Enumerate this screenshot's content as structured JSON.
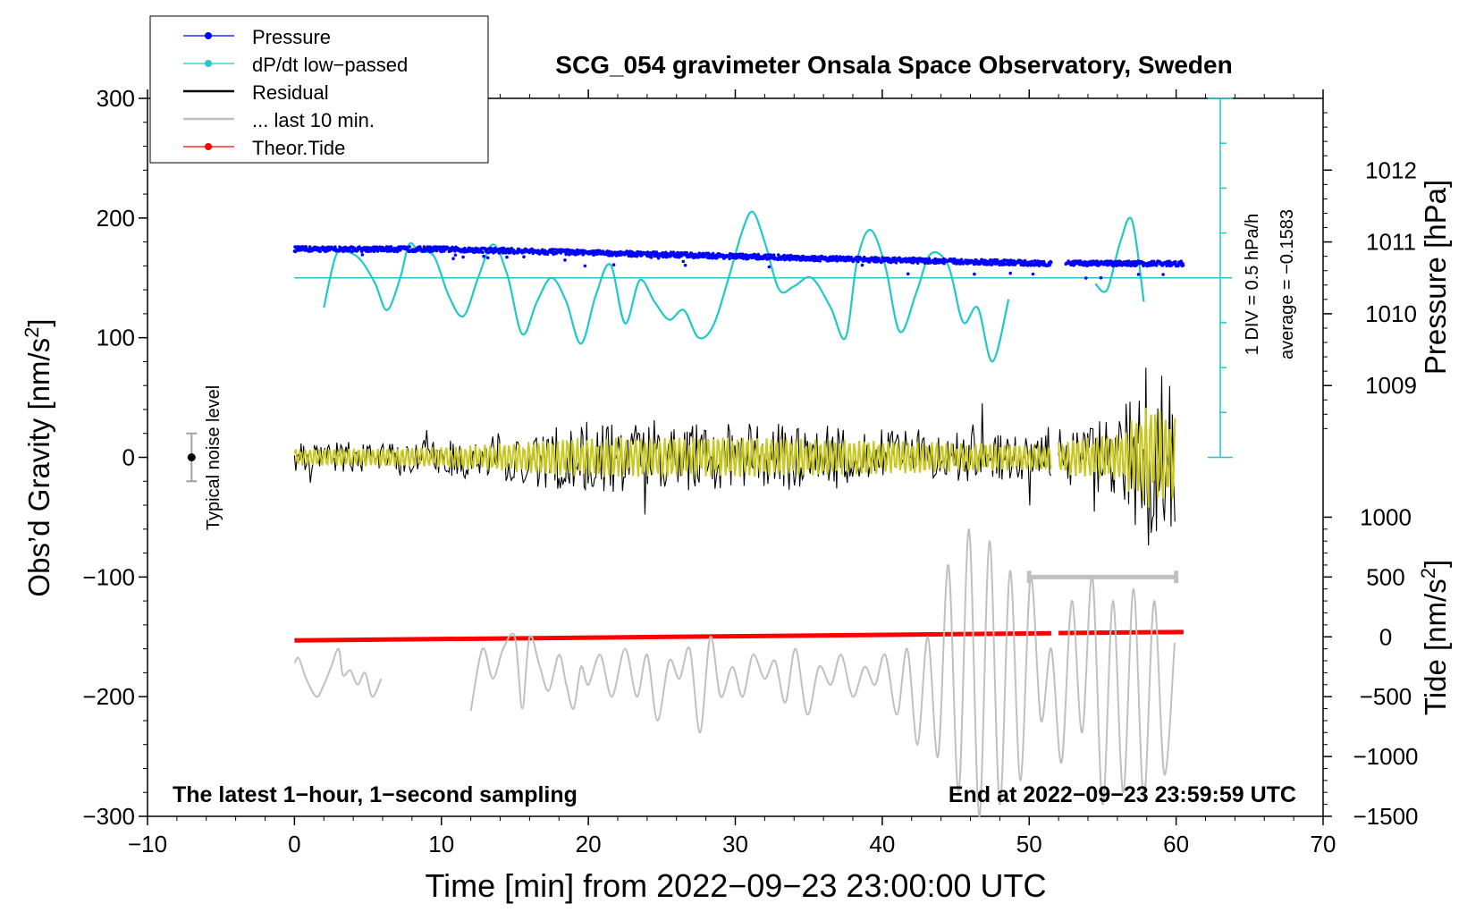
{
  "chart_data": {
    "type": "line",
    "title": "SCG_054 gravimeter Onsala Space Observatory, Sweden",
    "xlabel": "Time [min] from 2022−09−23 23:00:00 UTC",
    "ylabel_left_main": "Obs’d Gravity [nm/s",
    "ylabel_left_sup": "2",
    "ylabel_left_end": "]",
    "ylabel_right_pressure": "Pressure [hPa]",
    "ylabel_right_tide_main": "Tide [nm/s",
    "ylabel_right_tide_sup": "2",
    "ylabel_right_tide_end": "]",
    "xlim": [
      -10,
      70
    ],
    "ylim": [
      -300,
      300
    ],
    "x_ticks": [
      "−10",
      "0",
      "10",
      "20",
      "30",
      "40",
      "50",
      "60",
      "70"
    ],
    "x_tick_values": [
      -10,
      0,
      10,
      20,
      30,
      40,
      50,
      60,
      70
    ],
    "y_ticks": [
      "300",
      "200",
      "100",
      "0",
      "−100",
      "−200",
      "−300"
    ],
    "y_tick_values": [
      300,
      200,
      100,
      0,
      -100,
      -200,
      -300
    ],
    "pressure_ticks": [
      "1012",
      "1011",
      "1010",
      "1009"
    ],
    "pressure_tick_values": [
      1012,
      1011,
      1010,
      1009
    ],
    "pressure_axis": {
      "gravity_at_1012": 240,
      "gravity_per_hPa": 60
    },
    "tide_ticks": [
      "1000",
      "500",
      "0",
      "−500",
      "−1000",
      "−1500"
    ],
    "tide_tick_values": [
      1000,
      500,
      0,
      -500,
      -1000,
      -1500
    ],
    "tide_axis": {
      "gravity_at_0": -150,
      "gravity_per_500": 50
    },
    "legend_position": "top-left",
    "legend": [
      {
        "name": "Pressure",
        "color": "#0000ff",
        "marker": true
      },
      {
        "name": "dP/dt low−passed",
        "color": "#20c8c8",
        "marker": true
      },
      {
        "name": "Residual",
        "color": "#000000",
        "marker": false
      },
      {
        "name": "... last 10 min.",
        "color": "#c0c0c0",
        "marker": false
      },
      {
        "name": "Theor.Tide",
        "color": "#ff0000",
        "marker": true
      }
    ],
    "colors": {
      "pressure": "#0000ff",
      "dpdt": "#20c8c8",
      "residual": "#000000",
      "residual_filtered": "#c8c820",
      "last10": "#c0c0c0",
      "tide": "#ff0000"
    },
    "annotations": {
      "bottom_left": "The latest 1−hour, 1−second sampling",
      "bottom_right": "End at 2022−09−23 23:59:59 UTC",
      "scale_div": "1 DIV = 0.5 hPa/h",
      "scale_avg": "average = −0.1583",
      "noise": "Typical noise level"
    },
    "noise_bar": {
      "x": -7,
      "center": 0,
      "low": -20,
      "high": 20
    },
    "last10_span": {
      "x_start": 50,
      "x_end": 60,
      "y": -100
    },
    "dpdt_scale": {
      "x": 63,
      "bottom": 0,
      "top": 300,
      "divisions": 8,
      "baseline": 150
    },
    "series": [
      {
        "name": "Pressure",
        "unit": "hPa",
        "segments": [
          {
            "x": [
              0,
              10,
              20,
              30,
              40,
              51.5
            ],
            "y": [
              1010.9,
              1010.9,
              1010.85,
              1010.8,
              1010.75,
              1010.7
            ]
          },
          {
            "x": [
              52.5,
              60.5
            ],
            "y": [
              1010.7,
              1010.7
            ]
          }
        ]
      },
      {
        "name": "dP/dt low−passed",
        "unit": "gravity-scale",
        "baseline": 150,
        "segments": [
          {
            "x": [
              2,
              2.8,
              3.5,
              4.5,
              5.5,
              6.3,
              7.2,
              7.8,
              8.5,
              9.5,
              10.5,
              11.5,
              12.5,
              13.5,
              14.5,
              15.5,
              16.5,
              17.5,
              18.5,
              19.5,
              20.5,
              21.5,
              22.5,
              23.5,
              24.5,
              25.5,
              26.5,
              27.5,
              28.5,
              29.5,
              30.5,
              31.2,
              32,
              33,
              34,
              35.2,
              36.5,
              37.5,
              38.3,
              39.2,
              40.2,
              41.2,
              42.3,
              43.3,
              44.5,
              45.5,
              46.5,
              47.5,
              48.6
            ],
            "y": [
              125,
              168,
              172,
              165,
              145,
              123,
              150,
              178,
              172,
              168,
              135,
              118,
              150,
              178,
              152,
              103,
              130,
              150,
              130,
              95,
              135,
              161,
              112,
              148,
              130,
              115,
              123,
              100,
              110,
              148,
              190,
              205,
              180,
              140,
              143,
              150,
              125,
              100,
              165,
              190,
              160,
              105,
              137,
              170,
              160,
              113,
              125,
              80,
              132
            ]
          },
          {
            "x": [
              54.5,
              55.3,
              56.2,
              57,
              57.8
            ],
            "y": [
              145,
              140,
              180,
              198,
              130
            ]
          }
        ]
      },
      {
        "name": "Residual",
        "unit": "nm/s2",
        "segments": [
          {
            "x": [
              0,
              51.5
            ],
            "envelope": [
              [
                0,
                12
              ],
              [
                10,
                15
              ],
              [
                20,
                30
              ],
              [
                30,
                30
              ],
              [
                40,
                25
              ],
              [
                51.5,
                18
              ]
            ]
          },
          {
            "x": [
              52,
              60
            ],
            "envelope": [
              [
                52,
                25
              ],
              [
                56,
                35
              ],
              [
                58,
                80
              ],
              [
                60,
                60
              ]
            ]
          }
        ]
      },
      {
        "name": "... last 10 min.",
        "unit": "nm/s2",
        "segments": [
          {
            "x": [
              0,
              0.3,
              0.8,
              1.5,
              2,
              2.5,
              3,
              3.3,
              3.8,
              4.3,
              4.8,
              5.3,
              5.9
            ],
            "y": [
              -172,
              -168,
              -185,
              -200,
              -190,
              -175,
              -160,
              -182,
              -178,
              -190,
              -180,
              -200,
              -185
            ]
          },
          {
            "x": [
              12,
              12.8,
              13.5,
              14.2,
              15,
              15.5,
              16,
              16.7,
              17.3,
              18,
              18.5,
              19,
              19.5,
              20,
              20.8,
              21.6,
              22.5,
              23.3,
              24,
              24.7,
              25.5,
              26.2,
              26.9,
              27.6,
              28.3,
              29,
              29.8,
              30.5,
              31.2,
              32,
              32.7,
              33.4,
              34.1,
              34.9,
              35.7,
              36.5,
              37.2,
              38,
              38.8,
              39.5,
              40.2,
              41,
              41.7,
              42.4,
              43.1,
              43.8,
              44.5,
              45.2,
              45.9,
              46.6,
              47.3,
              48,
              48.7,
              49.4,
              50.1,
              50.8,
              51.5,
              52.2,
              52.9,
              53.6,
              54.3,
              55,
              55.7,
              56.4,
              57.1,
              57.8,
              58.5,
              59.2,
              59.9
            ],
            "y": [
              -212,
              -160,
              -185,
              -160,
              -150,
              -210,
              -150,
              -175,
              -195,
              -165,
              -190,
              -210,
              -175,
              -190,
              -165,
              -200,
              -160,
              -200,
              -165,
              -220,
              -170,
              -185,
              -160,
              -230,
              -150,
              -200,
              -175,
              -200,
              -165,
              -185,
              -170,
              -205,
              -160,
              -215,
              -175,
              -190,
              -165,
              -200,
              -175,
              -190,
              -165,
              -215,
              -160,
              -240,
              -150,
              -250,
              -90,
              -280,
              -60,
              -300,
              -70,
              -290,
              -95,
              -270,
              -100,
              -220,
              -160,
              -255,
              -120,
              -230,
              -100,
              -290,
              -120,
              -280,
              -110,
              -285,
              -120,
              -265,
              -155
            ]
          }
        ]
      },
      {
        "name": "Theor.Tide",
        "unit": "nm/s2",
        "segments": [
          {
            "x": [
              0,
              51.5
            ],
            "y": [
              -30,
              30
            ]
          },
          {
            "x": [
              52,
              60.5
            ],
            "y": [
              32,
              40
            ]
          }
        ]
      }
    ]
  }
}
